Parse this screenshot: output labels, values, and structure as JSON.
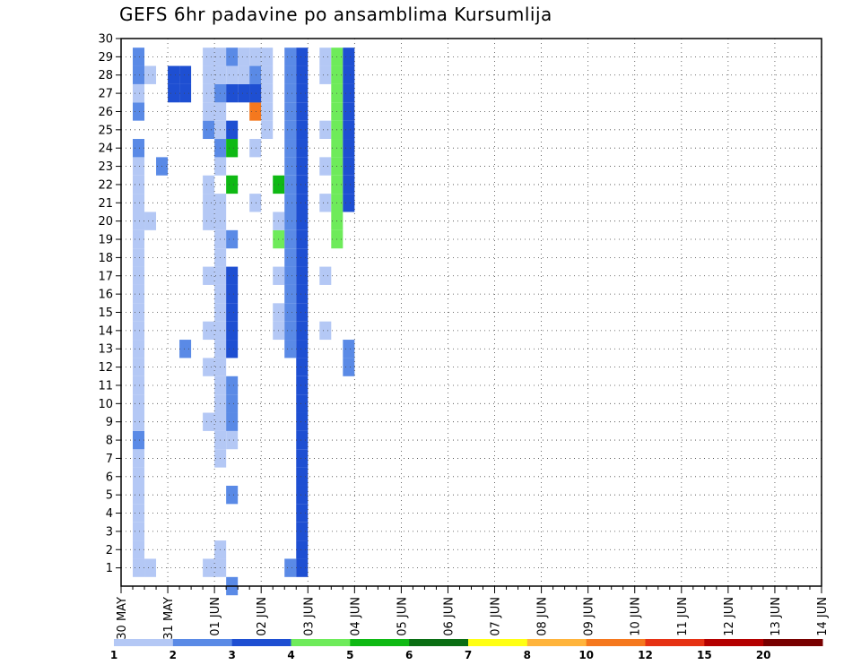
{
  "chart_data": {
    "type": "heatmap",
    "title": "GEFS 6hr padavine po ansamblima Kursumlija",
    "xlabel": "",
    "ylabel": "",
    "x_tick_labels": [
      "30 MAY",
      "31 MAY",
      "01 JUN",
      "02 JUN",
      "03 JUN",
      "04 JUN",
      "05 JUN",
      "06 JUN",
      "07 JUN",
      "08 JUN",
      "09 JUN",
      "10 JUN",
      "11 JUN",
      "12 JUN",
      "13 JUN",
      "14 JUN"
    ],
    "y_tick_labels": [
      "1",
      "2",
      "3",
      "4",
      "5",
      "6",
      "7",
      "8",
      "9",
      "10",
      "11",
      "12",
      "13",
      "14",
      "15",
      "16",
      "17",
      "18",
      "19",
      "20",
      "21",
      "22",
      "23",
      "24",
      "25",
      "26",
      "27",
      "28",
      "29",
      "30"
    ],
    "xlim": [
      0,
      60
    ],
    "ylim": [
      0,
      30
    ],
    "grid": true,
    "colorbar": {
      "labels": [
        "1",
        "2",
        "3",
        "4",
        "5",
        "6",
        "7",
        "8",
        "10",
        "12",
        "15",
        "20"
      ],
      "colors": [
        "#b4c8f5",
        "#5a8ae6",
        "#1e4fd2",
        "#6eeb5a",
        "#0fb914",
        "#0a6e14",
        "#ffff14",
        "#ffb43c",
        "#f5781e",
        "#e63214",
        "#b40000",
        "#780000"
      ]
    },
    "cells": [
      [
        1,
        2,
        1
      ],
      [
        1,
        3,
        1
      ],
      [
        1,
        4,
        1
      ],
      [
        1,
        5,
        1
      ],
      [
        1,
        6,
        1
      ],
      [
        1,
        7,
        1
      ],
      [
        1,
        8,
        1
      ],
      [
        1,
        9,
        2
      ],
      [
        1,
        10,
        1
      ],
      [
        1,
        11,
        1
      ],
      [
        1,
        12,
        1
      ],
      [
        1,
        13,
        1
      ],
      [
        1,
        14,
        1
      ],
      [
        1,
        15,
        1
      ],
      [
        1,
        16,
        1
      ],
      [
        1,
        17,
        1
      ],
      [
        1,
        18,
        1
      ],
      [
        1,
        19,
        1
      ],
      [
        1,
        20,
        1
      ],
      [
        1,
        21,
        1
      ],
      [
        1,
        22,
        1
      ],
      [
        1,
        23,
        1
      ],
      [
        1,
        24,
        1
      ],
      [
        1,
        25,
        2
      ],
      [
        1,
        27,
        2
      ],
      [
        1,
        28,
        1
      ],
      [
        1,
        29,
        2
      ],
      [
        1,
        30,
        2
      ],
      [
        2,
        2,
        1
      ],
      [
        2,
        21,
        1
      ],
      [
        2,
        29,
        1
      ],
      [
        3,
        24,
        2
      ],
      [
        4,
        28,
        3
      ],
      [
        4,
        29,
        3
      ],
      [
        5,
        28,
        3
      ],
      [
        5,
        29,
        3
      ],
      [
        5,
        14,
        2
      ],
      [
        7,
        2,
        1
      ],
      [
        7,
        10,
        1
      ],
      [
        7,
        13,
        1
      ],
      [
        7,
        15,
        1
      ],
      [
        7,
        18,
        1
      ],
      [
        7,
        21,
        1
      ],
      [
        7,
        22,
        1
      ],
      [
        7,
        23,
        1
      ],
      [
        7,
        26,
        2
      ],
      [
        7,
        27,
        1
      ],
      [
        7,
        28,
        1
      ],
      [
        7,
        29,
        1
      ],
      [
        7,
        30,
        1
      ],
      [
        8,
        2,
        1
      ],
      [
        8,
        3,
        1
      ],
      [
        8,
        8,
        1
      ],
      [
        8,
        9,
        1
      ],
      [
        8,
        10,
        1
      ],
      [
        8,
        11,
        1
      ],
      [
        8,
        12,
        1
      ],
      [
        8,
        13,
        1
      ],
      [
        8,
        14,
        1
      ],
      [
        8,
        15,
        1
      ],
      [
        8,
        16,
        1
      ],
      [
        8,
        17,
        1
      ],
      [
        8,
        18,
        1
      ],
      [
        8,
        19,
        1
      ],
      [
        8,
        20,
        1
      ],
      [
        8,
        21,
        1
      ],
      [
        8,
        22,
        1
      ],
      [
        8,
        24,
        1
      ],
      [
        8,
        25,
        2
      ],
      [
        8,
        26,
        1
      ],
      [
        8,
        27,
        1
      ],
      [
        8,
        28,
        2
      ],
      [
        8,
        29,
        1
      ],
      [
        8,
        30,
        1
      ],
      [
        9,
        1,
        2
      ],
      [
        9,
        6,
        2
      ],
      [
        9,
        9,
        1
      ],
      [
        9,
        10,
        2
      ],
      [
        9,
        11,
        2
      ],
      [
        9,
        12,
        2
      ],
      [
        9,
        14,
        3
      ],
      [
        9,
        15,
        3
      ],
      [
        9,
        16,
        3
      ],
      [
        9,
        17,
        3
      ],
      [
        9,
        18,
        3
      ],
      [
        9,
        20,
        2
      ],
      [
        9,
        23,
        5
      ],
      [
        9,
        25,
        5
      ],
      [
        9,
        26,
        3
      ],
      [
        9,
        28,
        3
      ],
      [
        9,
        29,
        1
      ],
      [
        9,
        30,
        2
      ],
      [
        10,
        28,
        3
      ],
      [
        10,
        29,
        1
      ],
      [
        10,
        30,
        1
      ],
      [
        11,
        28,
        3
      ],
      [
        11,
        29,
        2
      ],
      [
        11,
        30,
        1
      ],
      [
        11,
        22,
        1
      ],
      [
        11,
        25,
        1
      ],
      [
        11,
        27,
        9
      ],
      [
        11,
        28,
        3
      ],
      [
        12,
        26,
        1
      ],
      [
        12,
        27,
        1
      ],
      [
        12,
        28,
        1
      ],
      [
        12,
        29,
        1
      ],
      [
        12,
        30,
        1
      ],
      [
        13,
        15,
        1
      ],
      [
        13,
        16,
        1
      ],
      [
        13,
        18,
        1
      ],
      [
        13,
        20,
        4
      ],
      [
        13,
        21,
        1
      ],
      [
        13,
        23,
        5
      ],
      [
        14,
        2,
        2
      ],
      [
        14,
        14,
        2
      ],
      [
        14,
        15,
        2
      ],
      [
        14,
        16,
        2
      ],
      [
        14,
        17,
        2
      ],
      [
        14,
        18,
        2
      ],
      [
        14,
        19,
        2
      ],
      [
        14,
        20,
        2
      ],
      [
        14,
        21,
        2
      ],
      [
        14,
        22,
        2
      ],
      [
        14,
        23,
        2
      ],
      [
        14,
        24,
        2
      ],
      [
        14,
        25,
        2
      ],
      [
        14,
        26,
        2
      ],
      [
        14,
        27,
        2
      ],
      [
        14,
        28,
        2
      ],
      [
        14,
        29,
        2
      ],
      [
        14,
        30,
        2
      ],
      [
        15,
        2,
        3
      ],
      [
        15,
        3,
        3
      ],
      [
        15,
        4,
        3
      ],
      [
        15,
        5,
        3
      ],
      [
        15,
        6,
        3
      ],
      [
        15,
        7,
        3
      ],
      [
        15,
        8,
        3
      ],
      [
        15,
        9,
        3
      ],
      [
        15,
        10,
        3
      ],
      [
        15,
        11,
        3
      ],
      [
        15,
        12,
        3
      ],
      [
        15,
        13,
        3
      ],
      [
        15,
        14,
        3
      ],
      [
        15,
        15,
        3
      ],
      [
        15,
        16,
        3
      ],
      [
        15,
        17,
        3
      ],
      [
        15,
        18,
        3
      ],
      [
        15,
        19,
        3
      ],
      [
        15,
        20,
        3
      ],
      [
        15,
        21,
        3
      ],
      [
        15,
        22,
        3
      ],
      [
        15,
        23,
        3
      ],
      [
        15,
        24,
        3
      ],
      [
        15,
        25,
        3
      ],
      [
        15,
        26,
        3
      ],
      [
        15,
        27,
        3
      ],
      [
        15,
        28,
        3
      ],
      [
        15,
        29,
        3
      ],
      [
        15,
        30,
        3
      ],
      [
        17,
        15,
        1
      ],
      [
        17,
        26,
        1
      ],
      [
        17,
        29,
        1
      ],
      [
        17,
        30,
        1
      ],
      [
        17,
        18,
        1
      ],
      [
        17,
        22,
        1
      ],
      [
        17,
        24,
        1
      ],
      [
        18,
        20,
        4
      ],
      [
        18,
        21,
        4
      ],
      [
        18,
        22,
        4
      ],
      [
        18,
        23,
        4
      ],
      [
        18,
        24,
        4
      ],
      [
        18,
        25,
        4
      ],
      [
        18,
        26,
        4
      ],
      [
        18,
        27,
        4
      ],
      [
        18,
        28,
        4
      ],
      [
        18,
        29,
        4
      ],
      [
        18,
        30,
        4
      ],
      [
        19,
        13,
        2
      ],
      [
        19,
        14,
        2
      ],
      [
        19,
        22,
        3
      ],
      [
        19,
        23,
        3
      ],
      [
        19,
        24,
        3
      ],
      [
        19,
        25,
        3
      ],
      [
        19,
        26,
        3
      ],
      [
        19,
        27,
        3
      ],
      [
        19,
        28,
        3
      ],
      [
        19,
        29,
        3
      ],
      [
        19,
        30,
        3
      ]
    ]
  }
}
